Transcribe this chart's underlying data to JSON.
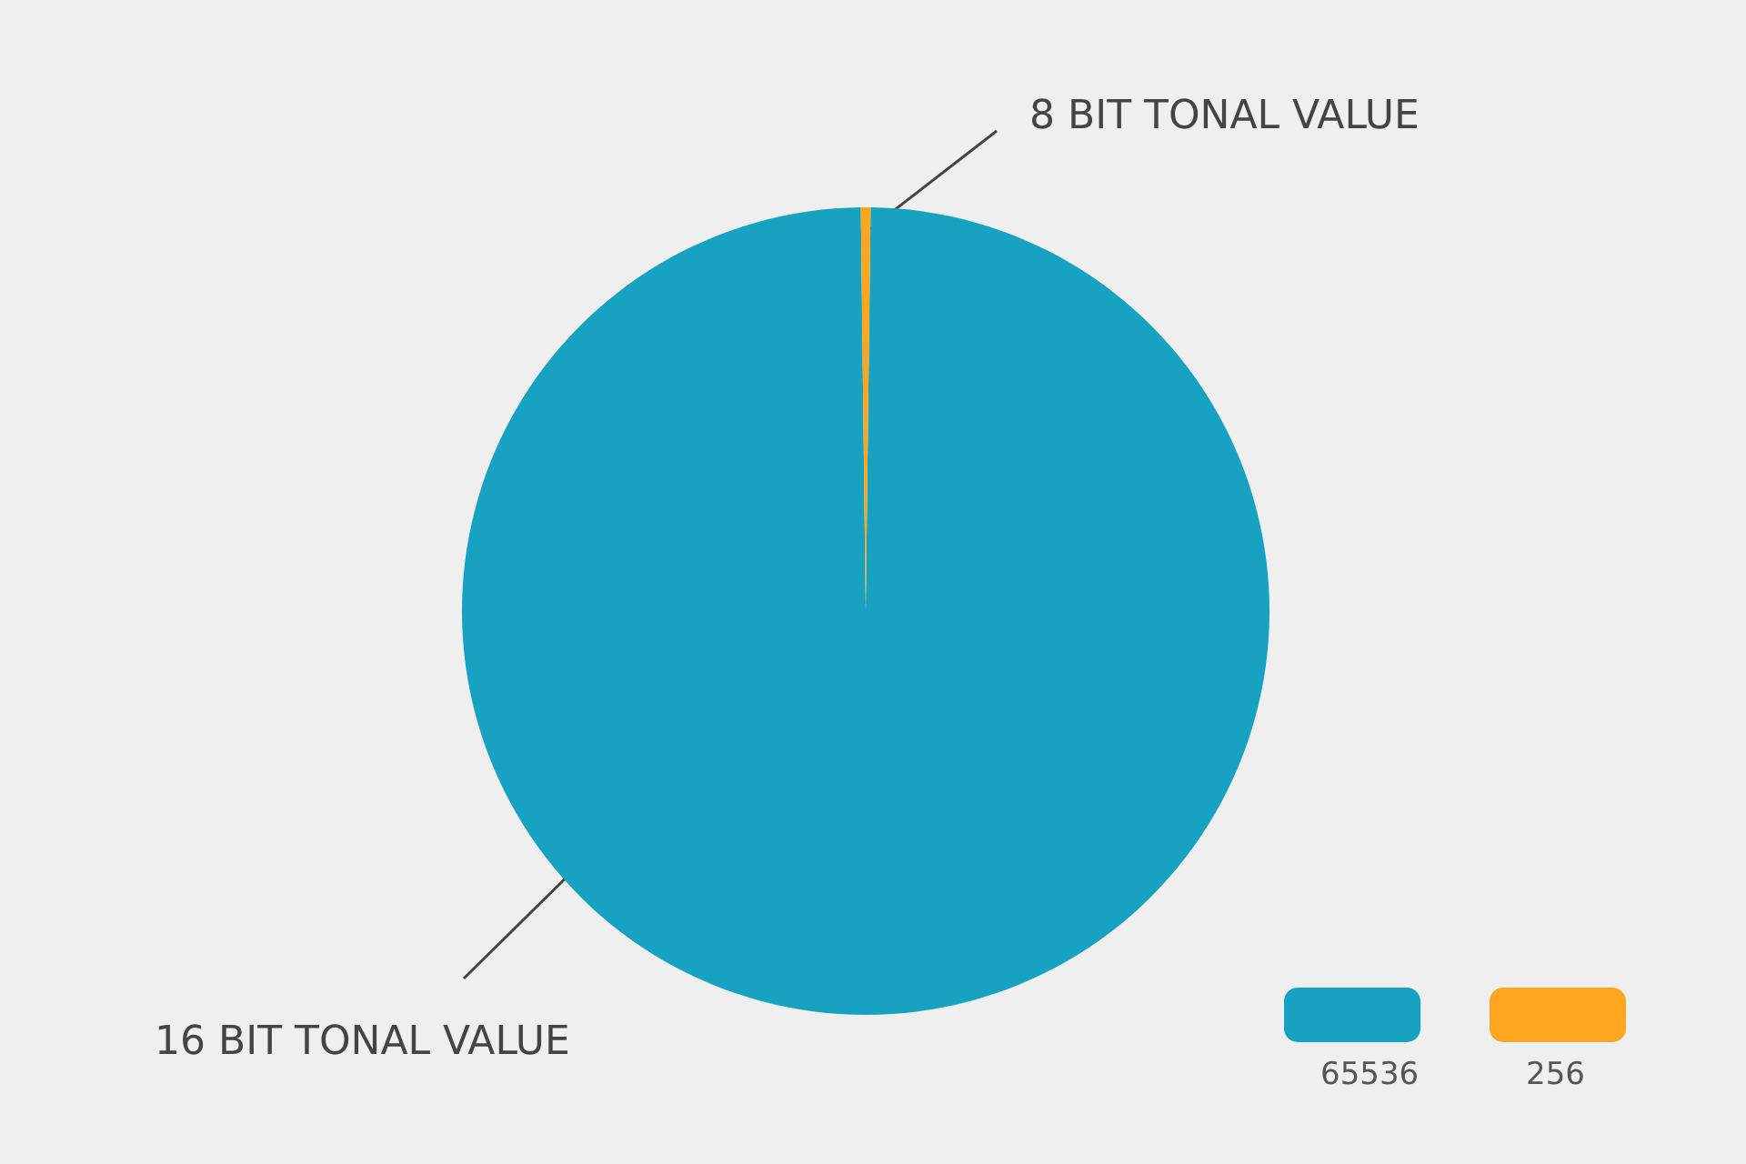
{
  "chart_data": {
    "type": "pie",
    "categories": [
      "65536",
      "256"
    ],
    "values": [
      65536,
      256
    ],
    "annotations": [
      "16 BIT TONAL VALUE",
      "8 BIT TONAL VALUE"
    ],
    "colors": [
      "#17a2c1",
      "#ffa520"
    ],
    "legend": "bottom right"
  }
}
